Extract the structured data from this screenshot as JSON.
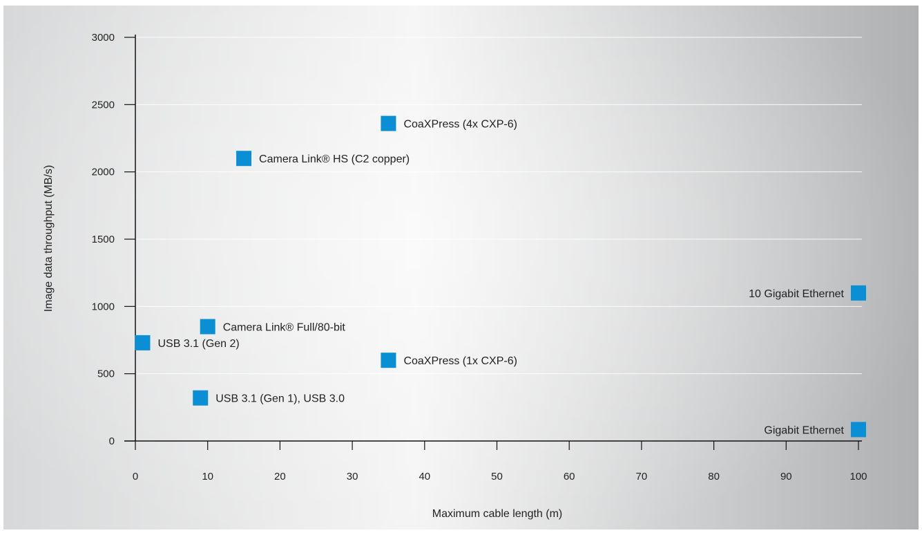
{
  "chart_data": {
    "type": "scatter",
    "title": "",
    "xlabel": "Maximum cable length (m)",
    "ylabel": "Image data throughput (MB/s)",
    "xlim": [
      0,
      100
    ],
    "ylim": [
      0,
      3000
    ],
    "xticks": [
      0,
      10,
      20,
      30,
      40,
      50,
      60,
      70,
      80,
      90,
      100
    ],
    "yticks": [
      0,
      500,
      1000,
      1500,
      2000,
      2500,
      3000
    ],
    "grid": "horizontal",
    "legend": "none",
    "marker_color": "#0a8fd4",
    "points": [
      {
        "name": "CoaXPress (4x CXP-6)",
        "x": 35,
        "y": 2360,
        "label_side": "right"
      },
      {
        "name": "Camera Link® HS (C2 copper)",
        "x": 15,
        "y": 2100,
        "label_side": "right"
      },
      {
        "name": "10 Gigabit Ethernet",
        "x": 100,
        "y": 1100,
        "label_side": "left"
      },
      {
        "name": "Camera Link® Full/80-bit",
        "x": 10,
        "y": 850,
        "label_side": "right"
      },
      {
        "name": "USB 3.1 (Gen 2)",
        "x": 1,
        "y": 730,
        "label_side": "right"
      },
      {
        "name": "CoaXPress (1x CXP-6)",
        "x": 35,
        "y": 600,
        "label_side": "right"
      },
      {
        "name": "USB 3.1 (Gen 1), USB 3.0",
        "x": 9,
        "y": 320,
        "label_side": "right"
      },
      {
        "name": "Gigabit Ethernet",
        "x": 100,
        "y": 85,
        "label_side": "left"
      }
    ]
  }
}
